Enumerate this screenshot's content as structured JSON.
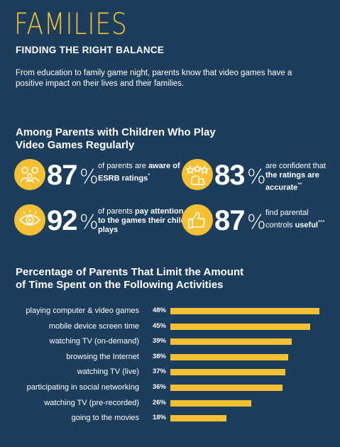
{
  "header": {
    "title": "FAMILIES",
    "subtitle": "FINDING THE RIGHT BALANCE",
    "intro": "From education to family game night, parents know that video games have a positive impact on their lives and their families."
  },
  "section1": {
    "title_line1": "Among Parents with Children Who Play",
    "title_line2": "Video Games Regularly",
    "stats": [
      {
        "icon": "family-icon",
        "value": "87",
        "unit": "%",
        "pre": "of parents are ",
        "bold1": "aware",
        "mid": "",
        "bold2": "of ESRB ratings",
        "post": "",
        "mark": "*"
      },
      {
        "icon": "star-rating-icon",
        "value": "83",
        "unit": "%",
        "pre": "are confident that ",
        "bold1": "the ratings",
        "mid": " ",
        "bold2": "are accurate",
        "post": "",
        "mark": "**"
      },
      {
        "icon": "eye-icon",
        "value": "92",
        "unit": "%",
        "pre": "of parents ",
        "bold1": "pay",
        "mid": " ",
        "bold2": "attention to the games their child plays",
        "post": "",
        "mark": ""
      },
      {
        "icon": "thumbs-up-icon",
        "value": "87",
        "unit": "%",
        "pre": "find parental controls ",
        "bold1": "useful",
        "mid": "",
        "bold2": "",
        "post": "",
        "mark": "***"
      }
    ]
  },
  "section2": {
    "title_line1": "Percentage of Parents That Limit the Amount",
    "title_line2": "of Time Spent on the Following Activities"
  },
  "colors": {
    "accent": "#f5c033",
    "background": "#1c3d5b"
  },
  "chart_data": {
    "type": "bar",
    "orientation": "horizontal",
    "title": "Percentage of Parents That Limit the Amount of Time Spent on the Following Activities",
    "categories": [
      "playing computer & video games",
      "mobile device screen time",
      "watching TV (on-demand)",
      "browsing the Internet",
      "watching TV (live)",
      "participating in social networking",
      "watching TV (pre-recorded)",
      "going to the movies"
    ],
    "values": [
      48,
      45,
      39,
      38,
      37,
      36,
      26,
      18
    ],
    "value_labels": [
      "48%",
      "45%",
      "39%",
      "38%",
      "37%",
      "36%",
      "26%",
      "18%"
    ],
    "xlim": [
      0,
      48
    ]
  }
}
